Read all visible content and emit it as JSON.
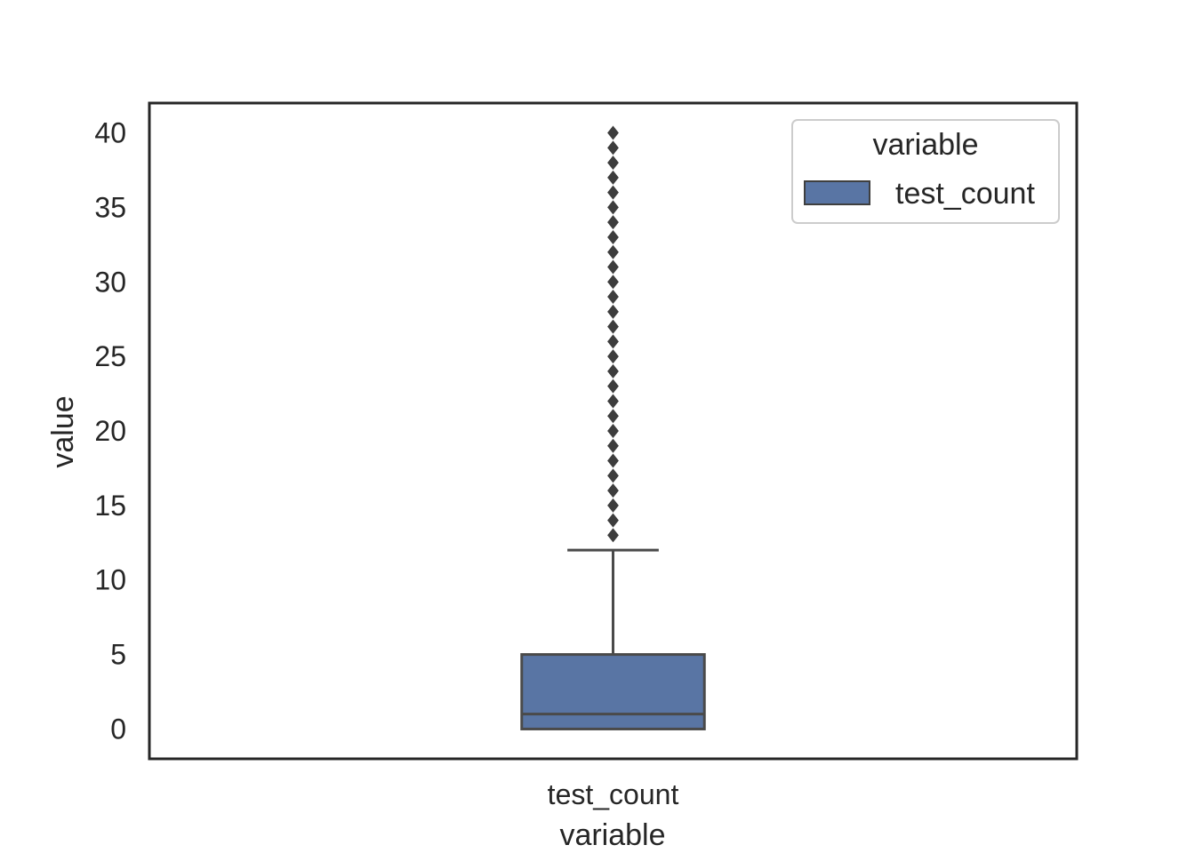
{
  "chart_data": {
    "type": "box",
    "title": "",
    "xlabel": "variable",
    "ylabel": "value",
    "categories": [
      "test_count"
    ],
    "yticks": [
      "0",
      "5",
      "10",
      "15",
      "20",
      "25",
      "30",
      "35",
      "40"
    ],
    "ylim": [
      -2,
      42
    ],
    "grid": false,
    "legend": {
      "title": "variable",
      "position": "top-right",
      "entries": [
        "test_count"
      ]
    },
    "series": [
      {
        "name": "test_count",
        "color": "#5975a4",
        "min_whisker": 0,
        "q1": 0,
        "median": 1,
        "q3": 5,
        "max_whisker": 12,
        "outliers": [
          13,
          14,
          15,
          16,
          17,
          18,
          19,
          20,
          21,
          22,
          23,
          24,
          25,
          26,
          27,
          28,
          29,
          30,
          31,
          32,
          33,
          34,
          35,
          36,
          37,
          38,
          39,
          40
        ]
      }
    ]
  }
}
